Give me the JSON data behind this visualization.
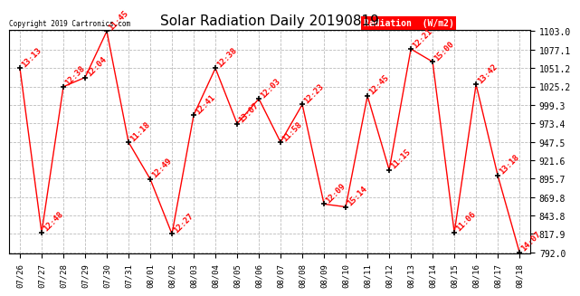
{
  "title": "Solar Radiation Daily 20190819",
  "copyright": "Copyright 2019 Cartronics.com",
  "legend_label": "Radiation  (W/m2)",
  "dates": [
    "07/26",
    "07/27",
    "07/28",
    "07/29",
    "07/30",
    "07/31",
    "08/01",
    "08/02",
    "08/03",
    "08/04",
    "08/05",
    "08/06",
    "08/07",
    "08/08",
    "08/09",
    "08/10",
    "08/11",
    "08/12",
    "08/13",
    "08/14",
    "08/15",
    "08/16",
    "08/17",
    "08/18"
  ],
  "values": [
    1051.0,
    820.0,
    1025.0,
    1038.0,
    1103.0,
    947.0,
    895.0,
    818.0,
    985.0,
    1051.0,
    973.0,
    1008.0,
    947.0,
    1000.0,
    860.0,
    856.0,
    1012.0,
    908.0,
    1078.0,
    1060.0,
    820.0,
    1028.0,
    900.0,
    792.0
  ],
  "times": [
    "13:13",
    "12:48",
    "12:38",
    "12:04",
    "11:45",
    "11:18",
    "12:49",
    "12:27",
    "12:41",
    "12:38",
    "13:07",
    "12:03",
    "11:58",
    "12:23",
    "12:09",
    "15:14",
    "12:45",
    "11:15",
    "12:21",
    "15:00",
    "11:06",
    "13:42",
    "13:18",
    "14:07"
  ],
  "ymin": 792.0,
  "ymax": 1103.0,
  "yticks": [
    792.0,
    817.9,
    843.8,
    869.8,
    895.7,
    921.6,
    947.5,
    973.4,
    999.3,
    1025.2,
    1051.2,
    1077.1,
    1103.0
  ],
  "line_color": "red",
  "marker_color": "black",
  "background_color": "white",
  "grid_color": "#bbbbbb",
  "title_fontsize": 11,
  "annotation_fontsize": 6.5,
  "legend_bg": "red",
  "legend_text_color": "white"
}
